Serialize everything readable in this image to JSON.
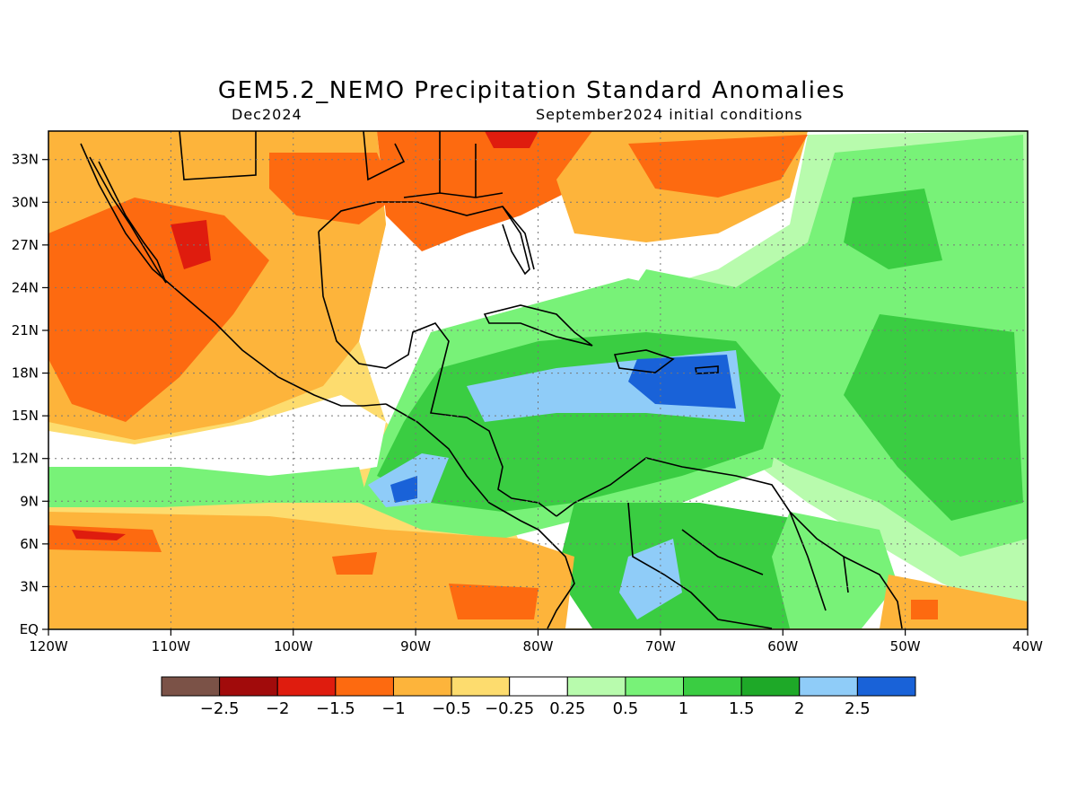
{
  "header": {
    "title": "GEM5.2_NEMO Precipitation Standard Anomalies",
    "valid_month": "Dec2024",
    "initial_conditions": "September2024 initial conditions"
  },
  "map": {
    "lon_labels": [
      "120W",
      "110W",
      "100W",
      "90W",
      "80W",
      "70W",
      "60W",
      "50W",
      "40W"
    ],
    "lat_labels": [
      "EQ",
      "3N",
      "6N",
      "9N",
      "12N",
      "15N",
      "18N",
      "21N",
      "24N",
      "27N",
      "30N",
      "33N"
    ],
    "lon_range": [
      -120,
      -40
    ],
    "lat_range": [
      0,
      35
    ],
    "grid": "dotted",
    "background_color": "#fddc6e"
  },
  "colorbar": {
    "colors": [
      "#7b5247",
      "#a10b0b",
      "#df1c0e",
      "#fd6a10",
      "#fdb43b",
      "#fddc6e",
      "#ffffff",
      "#b8fbad",
      "#78f278",
      "#3acd42",
      "#1ea928",
      "#8fccf8",
      "#1962d8"
    ],
    "labels": [
      "−2.5",
      "−2",
      "−1.5",
      "−1",
      "−0.5",
      "−0.25",
      "0.25",
      "0.5",
      "1",
      "1.5",
      "2",
      "2.5"
    ]
  }
}
